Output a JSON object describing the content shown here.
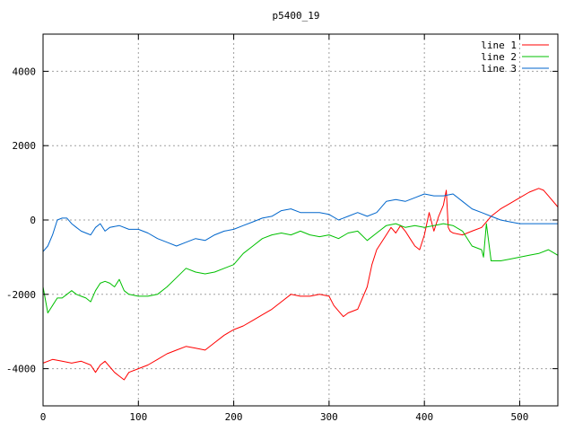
{
  "chart_data": {
    "type": "line",
    "title": "p5400_19",
    "xlabel": "",
    "ylabel": "",
    "xlim": [
      0,
      540
    ],
    "ylim": [
      -5000,
      5000
    ],
    "x_ticks": [
      0,
      100,
      200,
      300,
      400,
      500
    ],
    "y_ticks": [
      -4000,
      -2000,
      0,
      2000,
      4000
    ],
    "x_tick_labels": [
      "0",
      "100",
      "200",
      "300",
      "400",
      "500"
    ],
    "y_tick_labels": [
      "-4000",
      "-2000",
      "0",
      "2000",
      "4000"
    ],
    "grid": true,
    "legend_position": "top-right",
    "series": [
      {
        "name": "line 1",
        "color": "#ff0000",
        "x": [
          0,
          10,
          20,
          30,
          40,
          50,
          55,
          60,
          65,
          70,
          75,
          80,
          85,
          90,
          100,
          110,
          120,
          130,
          140,
          150,
          160,
          170,
          180,
          190,
          200,
          210,
          220,
          230,
          240,
          250,
          260,
          270,
          280,
          290,
          300,
          305,
          310,
          315,
          320,
          330,
          340,
          345,
          350,
          360,
          365,
          370,
          375,
          380,
          385,
          390,
          395,
          400,
          405,
          410,
          415,
          420,
          423,
          425,
          427,
          430,
          440,
          450,
          460,
          470,
          480,
          490,
          500,
          510,
          520,
          525,
          530,
          540
        ],
        "y": [
          -3850,
          -3750,
          -3800,
          -3850,
          -3800,
          -3900,
          -4100,
          -3900,
          -3800,
          -3950,
          -4100,
          -4200,
          -4300,
          -4100,
          -4000,
          -3900,
          -3750,
          -3600,
          -3500,
          -3400,
          -3450,
          -3500,
          -3300,
          -3100,
          -2950,
          -2850,
          -2700,
          -2550,
          -2400,
          -2200,
          -2000,
          -2050,
          -2050,
          -2000,
          -2050,
          -2300,
          -2450,
          -2600,
          -2500,
          -2400,
          -1800,
          -1200,
          -800,
          -400,
          -200,
          -350,
          -150,
          -300,
          -500,
          -700,
          -800,
          -400,
          200,
          -300,
          100,
          400,
          800,
          -200,
          -300,
          -350,
          -400,
          -300,
          -200,
          100,
          300,
          450,
          600,
          750,
          850,
          800,
          650,
          350
        ]
      },
      {
        "name": "line 2",
        "color": "#00c000",
        "x": [
          0,
          5,
          10,
          15,
          20,
          25,
          30,
          35,
          40,
          45,
          50,
          55,
          60,
          65,
          70,
          75,
          80,
          85,
          90,
          100,
          110,
          120,
          130,
          140,
          150,
          160,
          170,
          180,
          190,
          200,
          210,
          220,
          230,
          240,
          250,
          260,
          270,
          280,
          290,
          300,
          310,
          320,
          330,
          340,
          350,
          360,
          370,
          380,
          390,
          400,
          410,
          420,
          430,
          440,
          450,
          460,
          462,
          465,
          470,
          480,
          490,
          500,
          510,
          520,
          530,
          540
        ],
        "y": [
          -1800,
          -2500,
          -2300,
          -2100,
          -2100,
          -2000,
          -1900,
          -2000,
          -2050,
          -2100,
          -2200,
          -1900,
          -1700,
          -1650,
          -1700,
          -1800,
          -1600,
          -1900,
          -2000,
          -2050,
          -2050,
          -2000,
          -1800,
          -1550,
          -1300,
          -1400,
          -1450,
          -1400,
          -1300,
          -1200,
          -900,
          -700,
          -500,
          -400,
          -350,
          -400,
          -300,
          -400,
          -450,
          -400,
          -500,
          -350,
          -300,
          -550,
          -350,
          -150,
          -100,
          -200,
          -150,
          -200,
          -150,
          -100,
          -150,
          -300,
          -700,
          -800,
          -1000,
          -100,
          -1100,
          -1100,
          -1050,
          -1000,
          -950,
          -900,
          -800,
          -950
        ]
      },
      {
        "name": "line 3",
        "color": "#0066cc",
        "x": [
          0,
          5,
          10,
          15,
          20,
          25,
          30,
          35,
          40,
          50,
          55,
          60,
          65,
          70,
          80,
          90,
          100,
          110,
          120,
          130,
          140,
          150,
          160,
          170,
          180,
          190,
          200,
          210,
          220,
          230,
          240,
          250,
          260,
          270,
          280,
          290,
          300,
          310,
          320,
          330,
          340,
          350,
          360,
          370,
          380,
          390,
          400,
          410,
          420,
          430,
          440,
          450,
          460,
          470,
          480,
          490,
          500,
          510,
          520,
          530,
          540
        ],
        "y": [
          -850,
          -700,
          -400,
          0,
          50,
          50,
          -100,
          -200,
          -300,
          -400,
          -200,
          -100,
          -300,
          -200,
          -150,
          -250,
          -250,
          -350,
          -500,
          -600,
          -700,
          -600,
          -500,
          -550,
          -400,
          -300,
          -250,
          -150,
          -50,
          50,
          100,
          250,
          300,
          200,
          200,
          200,
          150,
          0,
          100,
          200,
          100,
          200,
          500,
          550,
          500,
          600,
          700,
          650,
          650,
          700,
          500,
          300,
          200,
          100,
          0,
          -50,
          -100,
          -100,
          -100,
          -100,
          -100
        ]
      }
    ]
  }
}
